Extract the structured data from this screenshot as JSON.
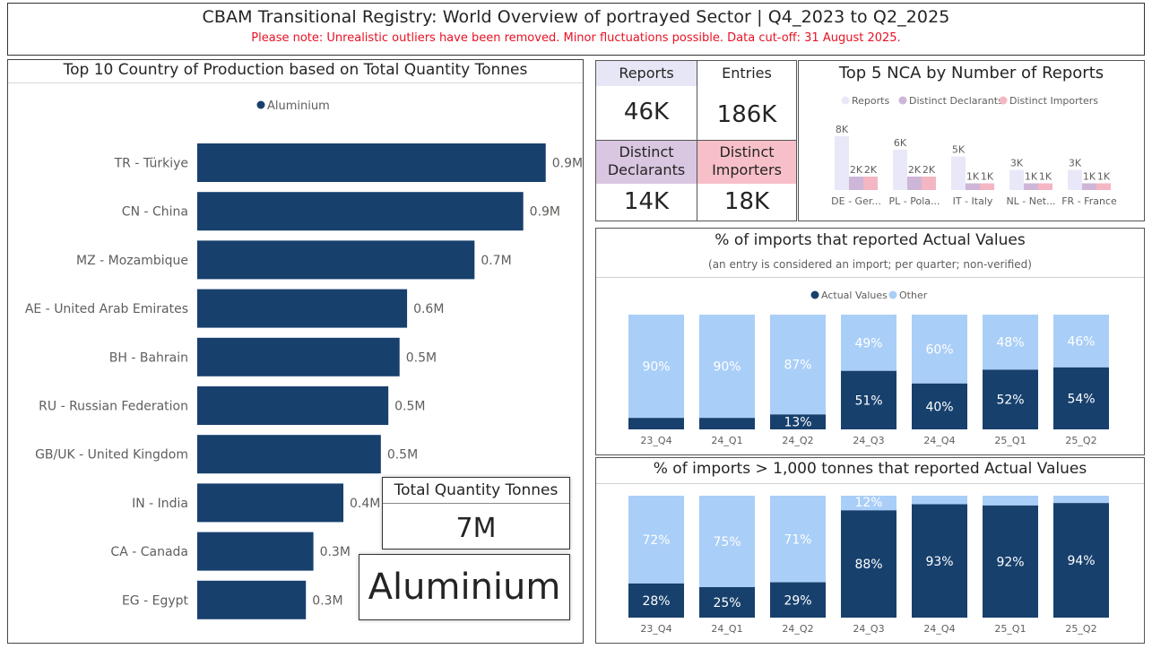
{
  "header": {
    "title": "CBAM Transitional Registry: World Overview of portrayed Sector | Q4_2023 to Q2_2025",
    "note": "Please note: Unrealistic outliers have been removed. Minor fluctuations possible. Data cut-off: 31 August 2025."
  },
  "colors": {
    "navy": "#17406d",
    "light_blue": "#a9cef7",
    "reports": "#e8e8f8",
    "declarants": "#cdb6d8",
    "importers": "#f4b6c2"
  },
  "kpis": {
    "reports": {
      "label": "Reports",
      "value": "46K",
      "bg": "#e6e6f6"
    },
    "entries": {
      "label": "Entries",
      "value": "186K",
      "bg": "#ffffff"
    },
    "declarants": {
      "label": "Distinct Declarants",
      "value": "14K",
      "bg": "#d9c6e0"
    },
    "importers": {
      "label": "Distinct Importers",
      "value": "18K",
      "bg": "#f7c0c8"
    }
  },
  "total_card": {
    "label": "Total Quantity Tonnes",
    "value": "7M"
  },
  "sector_card": {
    "value": "Aluminium"
  },
  "nca_title": "Top 5 NCA by Number of Reports",
  "actual_title": "% of imports that reported Actual Values",
  "actual_subtitle": "(an entry is considered an import; per quarter; non-verified)",
  "tonnes_title": "% of imports > 1,000 tonnes that reported Actual Values",
  "chart_data": [
    {
      "id": "top10",
      "type": "bar",
      "orientation": "horizontal",
      "title": "Top 10 Country of Production based on Total Quantity Tonnes",
      "legend": [
        "Aluminium"
      ],
      "categories": [
        "TR - Türkiye",
        "CN - China",
        "MZ - Mozambique",
        "AE - United Arab Emirates",
        "BH - Bahrain",
        "RU - Russian Federation",
        "GB/UK - United Kingdom",
        "IN - India",
        "CA - Canada",
        "EG - Egypt"
      ],
      "values": [
        0.93,
        0.87,
        0.74,
        0.56,
        0.54,
        0.51,
        0.49,
        0.39,
        0.31,
        0.29
      ],
      "labels": [
        "0.9M",
        "0.9M",
        "0.7M",
        "0.6M",
        "0.5M",
        "0.5M",
        "0.5M",
        "0.4M",
        "0.3M",
        "0.3M"
      ],
      "unit": "million tonnes",
      "xlim": [
        0,
        1.0
      ]
    },
    {
      "id": "nca",
      "type": "bar",
      "title": "Top 5 NCA by Number of Reports",
      "categories": [
        "DE - Ger...",
        "PL - Pola...",
        "IT - Italy",
        "NL - Net...",
        "FR - France"
      ],
      "series": [
        {
          "name": "Reports",
          "values": [
            8,
            6,
            5,
            3,
            3
          ],
          "labels": [
            "8K",
            "6K",
            "5K",
            "3K",
            "3K"
          ]
        },
        {
          "name": "Distinct Declarants",
          "values": [
            2,
            2,
            1,
            1,
            1
          ],
          "labels": [
            "2K",
            "2K",
            "1K",
            "1K",
            "1K"
          ]
        },
        {
          "name": "Distinct Importers",
          "values": [
            2,
            2,
            1,
            1,
            1
          ],
          "labels": [
            "2K",
            "2K",
            "1K",
            "1K",
            "1K"
          ]
        }
      ],
      "unit": "thousands",
      "ylim": [
        0,
        8
      ]
    },
    {
      "id": "actual",
      "type": "bar",
      "stacked": "100%",
      "title": "% of imports that reported Actual Values",
      "categories": [
        "23_Q4",
        "24_Q1",
        "24_Q2",
        "24_Q3",
        "24_Q4",
        "25_Q1",
        "25_Q2"
      ],
      "series": [
        {
          "name": "Actual Values",
          "values": [
            10,
            10,
            13,
            51,
            40,
            52,
            54
          ],
          "labels": [
            "",
            "",
            "13%",
            "51%",
            "40%",
            "52%",
            "54%"
          ]
        },
        {
          "name": "Other",
          "values": [
            90,
            90,
            87,
            49,
            60,
            48,
            46
          ],
          "labels": [
            "90%",
            "90%",
            "87%",
            "49%",
            "60%",
            "48%",
            "46%"
          ]
        }
      ],
      "ylim": [
        0,
        100
      ]
    },
    {
      "id": "tonnes",
      "type": "bar",
      "stacked": "100%",
      "title": "% of imports > 1,000 tonnes that reported Actual Values",
      "categories": [
        "23_Q4",
        "24_Q1",
        "24_Q2",
        "24_Q3",
        "24_Q4",
        "25_Q1",
        "25_Q2"
      ],
      "series": [
        {
          "name": "Actual Values",
          "values": [
            28,
            25,
            29,
            88,
            93,
            92,
            94
          ],
          "labels": [
            "28%",
            "25%",
            "29%",
            "88%",
            "93%",
            "92%",
            "94%"
          ]
        },
        {
          "name": "Other",
          "values": [
            72,
            75,
            71,
            12,
            7,
            8,
            6
          ],
          "labels": [
            "72%",
            "75%",
            "71%",
            "12%",
            "",
            "",
            ""
          ]
        }
      ],
      "ylim": [
        0,
        100
      ]
    }
  ]
}
